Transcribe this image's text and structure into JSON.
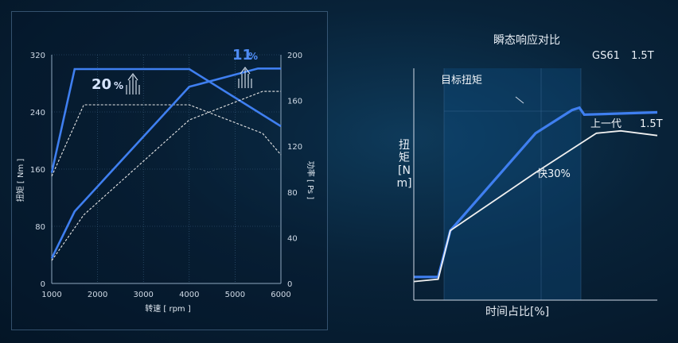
{
  "chart_data": [
    {
      "type": "line",
      "x": [
        1000,
        1500,
        1700,
        4000,
        5500,
        6000
      ],
      "xlim": [
        1000,
        6000
      ],
      "xticks": [
        "1000",
        "2000",
        "3000",
        "4000",
        "5000",
        "6000"
      ],
      "xlabel": "转速 [ rpm ]",
      "ylabel_left": "扭矩 [ Nm ]",
      "ylabel_right": "功率 [ Ps ]",
      "ylim_left": [
        0,
        320
      ],
      "ylim_right": [
        0,
        200
      ],
      "yticks_left": [
        "0",
        "80",
        "160",
        "240",
        "320"
      ],
      "yticks_right": [
        "0",
        "40",
        "80",
        "120",
        "160",
        "200"
      ],
      "series": [
        {
          "axis": "left",
          "style": "solid",
          "color": "#3f7ff0",
          "points": [
            [
              1000,
              155
            ],
            [
              1500,
              300
            ],
            [
              4000,
              300
            ],
            [
              6000,
              220
            ]
          ]
        },
        {
          "axis": "left",
          "style": "dashed",
          "color": "#e6e6e6",
          "points": [
            [
              1000,
              150
            ],
            [
              1700,
              250
            ],
            [
              4000,
              250
            ],
            [
              5600,
              210
            ],
            [
              6000,
              180
            ]
          ]
        },
        {
          "axis": "right",
          "style": "solid",
          "color": "#3f7ff0",
          "points": [
            [
              1000,
              22
            ],
            [
              1500,
              63
            ],
            [
              4000,
              172
            ],
            [
              5500,
              188
            ],
            [
              6000,
              188
            ]
          ]
        },
        {
          "axis": "right",
          "style": "dashed",
          "color": "#e6e6e6",
          "points": [
            [
              1000,
              20
            ],
            [
              1700,
              60
            ],
            [
              4000,
              143
            ],
            [
              5600,
              168
            ],
            [
              6000,
              168
            ]
          ]
        }
      ],
      "annotations": [
        {
          "text_main": "20",
          "text_unit": "%"
        },
        {
          "text_main": "11",
          "text_unit": "%"
        }
      ]
    },
    {
      "type": "line",
      "title": "瞬态响应对比",
      "xlabel": "时间占比[%]",
      "ylabel": "扭矩[Nm]",
      "xlim": [
        0,
        100
      ],
      "ylim": [
        0,
        100
      ],
      "series": [
        {
          "name": "GS61 1.5T",
          "color": "#3f7ff0",
          "points": [
            [
              0,
              10
            ],
            [
              10,
              10
            ],
            [
              15,
              30
            ],
            [
              50,
              72
            ],
            [
              65,
              82
            ],
            [
              68,
              83
            ],
            [
              70,
              80
            ],
            [
              100,
              81
            ]
          ]
        },
        {
          "name": "上一代 1.5T",
          "color": "#f0f0f0",
          "points": [
            [
              0,
              8
            ],
            [
              10,
              9
            ],
            [
              15,
              30
            ],
            [
              22,
              35
            ],
            [
              50,
              55
            ],
            [
              75,
              72
            ],
            [
              85,
              73
            ],
            [
              100,
              71
            ]
          ]
        }
      ],
      "annotations": [
        {
          "text": "目标扭矩"
        },
        {
          "text": "快30%"
        }
      ],
      "legend": [
        {
          "label": "GS61",
          "sub": "1.5T"
        },
        {
          "label": "上一代",
          "sub": "1.5T"
        }
      ]
    }
  ]
}
